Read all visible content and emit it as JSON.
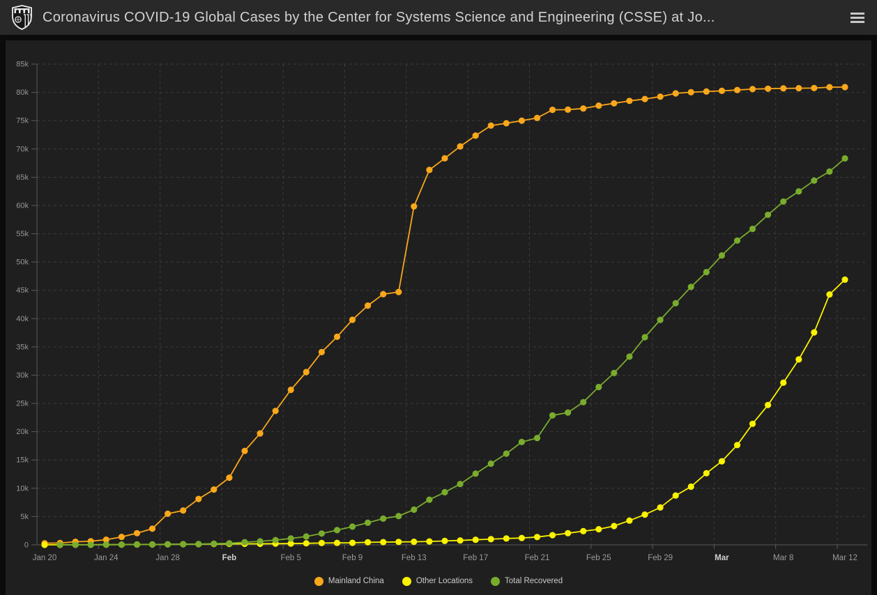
{
  "header": {
    "title": "Coronavirus COVID-19 Global Cases by the Center for Systems Science and Engineering (CSSE) at Jo...",
    "logo": "johns-hopkins-university-shield",
    "menu_icon": "hamburger-menu"
  },
  "theme": {
    "page_bg": "#0b0b0b",
    "header_bg": "#292929",
    "panel_bg": "#1f1f1f",
    "grid_color": "#3b3b3b",
    "axis_color": "#5a5a5a",
    "axis_label_color": "#969696",
    "title_color": "#d2d2d2",
    "legend_text_color": "#cbcbcb"
  },
  "chart_data": {
    "type": "line",
    "title": "",
    "xlabel": "",
    "ylabel": "",
    "ylim": [
      0,
      85000
    ],
    "y_tick_step": 5000,
    "y_tick_labels": [
      "0",
      "5k",
      "10k",
      "15k",
      "20k",
      "25k",
      "30k",
      "35k",
      "40k",
      "45k",
      "50k",
      "55k",
      "60k",
      "65k",
      "70k",
      "75k",
      "80k",
      "85k"
    ],
    "grid": "dashed",
    "legend_position": "bottom",
    "x": [
      "Jan 20",
      "Jan 21",
      "Jan 22",
      "Jan 23",
      "Jan 24",
      "Jan 25",
      "Jan 26",
      "Jan 27",
      "Jan 28",
      "Jan 29",
      "Jan 30",
      "Jan 31",
      "Feb 1",
      "Feb 2",
      "Feb 3",
      "Feb 4",
      "Feb 5",
      "Feb 6",
      "Feb 7",
      "Feb 8",
      "Feb 9",
      "Feb 10",
      "Feb 11",
      "Feb 12",
      "Feb 13",
      "Feb 14",
      "Feb 15",
      "Feb 16",
      "Feb 17",
      "Feb 18",
      "Feb 19",
      "Feb 20",
      "Feb 21",
      "Feb 22",
      "Feb 23",
      "Feb 24",
      "Feb 25",
      "Feb 26",
      "Feb 27",
      "Feb 28",
      "Feb 29",
      "Mar 1",
      "Mar 2",
      "Mar 3",
      "Mar 4",
      "Mar 5",
      "Mar 6",
      "Mar 7",
      "Mar 8",
      "Mar 9",
      "Mar 10",
      "Mar 11",
      "Mar 12"
    ],
    "x_ticks": [
      {
        "index": 0,
        "label": "Jan 20",
        "bold": false
      },
      {
        "index": 4,
        "label": "Jan 24",
        "bold": false
      },
      {
        "index": 8,
        "label": "Jan 28",
        "bold": false
      },
      {
        "index": 12,
        "label": "Feb",
        "bold": true
      },
      {
        "index": 16,
        "label": "Feb 5",
        "bold": false
      },
      {
        "index": 20,
        "label": "Feb 9",
        "bold": false
      },
      {
        "index": 24,
        "label": "Feb 13",
        "bold": false
      },
      {
        "index": 28,
        "label": "Feb 17",
        "bold": false
      },
      {
        "index": 32,
        "label": "Feb 21",
        "bold": false
      },
      {
        "index": 36,
        "label": "Feb 25",
        "bold": false
      },
      {
        "index": 40,
        "label": "Feb 29",
        "bold": false
      },
      {
        "index": 44,
        "label": "Mar",
        "bold": true
      },
      {
        "index": 48,
        "label": "Mar 8",
        "bold": false
      },
      {
        "index": 52,
        "label": "Mar 12",
        "bold": false
      }
    ],
    "series": [
      {
        "name": "Mainland China",
        "color": "#F9A71B",
        "values": [
          278,
          326,
          547,
          639,
          916,
          1399,
          2062,
          2863,
          5494,
          6070,
          8124,
          9783,
          11871,
          16607,
          19693,
          23680,
          27409,
          30553,
          34075,
          36778,
          39790,
          42306,
          44327,
          44699,
          59832,
          66292,
          68347,
          70446,
          72364,
          74139,
          74546,
          74999,
          75472,
          76922,
          76938,
          77152,
          77660,
          78065,
          78498,
          78824,
          79251,
          79826,
          80026,
          80151,
          80271,
          80422,
          80573,
          80652,
          80699,
          80735,
          80757,
          80921,
          80932
        ]
      },
      {
        "name": "Other Locations",
        "color": "#FAF200",
        "values": [
          4,
          6,
          8,
          14,
          25,
          40,
          57,
          64,
          87,
          105,
          118,
          153,
          173,
          183,
          188,
          212,
          227,
          265,
          317,
          343,
          361,
          457,
          476,
          523,
          538,
          603,
          686,
          781,
          896,
          999,
          1124,
          1212,
          1385,
          1715,
          2055,
          2419,
          2755,
          3332,
          4288,
          5341,
          6605,
          8724,
          10288,
          12668,
          14768,
          17646,
          21397,
          24727,
          28673,
          32778,
          37559,
          44279,
          46890
        ]
      },
      {
        "name": "Total Recovered",
        "color": "#79AC2D",
        "values": [
          null,
          28,
          28,
          30,
          36,
          39,
          49,
          58,
          101,
          120,
          135,
          214,
          275,
          463,
          614,
          843,
          1115,
          1477,
          1999,
          2596,
          3219,
          3918,
          4636,
          5082,
          6217,
          7977,
          9298,
          10755,
          12583,
          14352,
          16121,
          18177,
          18890,
          22886,
          23394,
          25227,
          27905,
          30384,
          33277,
          36711,
          39782,
          42716,
          45602,
          48228,
          51170,
          53796,
          55865,
          58358,
          60694,
          62494,
          64404,
          66001,
          68324
        ]
      }
    ]
  }
}
